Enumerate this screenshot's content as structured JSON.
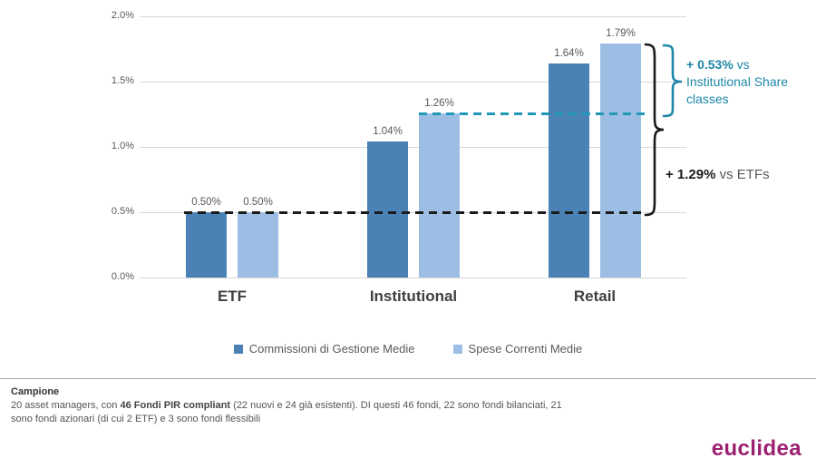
{
  "chart_data": {
    "type": "bar",
    "title": "",
    "categories": [
      "ETF",
      "Institutional",
      "Retail"
    ],
    "series": [
      {
        "name": "Commissioni di Gestione Medie",
        "color": "#4A82B6",
        "values": [
          0.5,
          1.04,
          1.64
        ],
        "value_labels": [
          "0.50%",
          "1.04%",
          "1.64%"
        ]
      },
      {
        "name": "Spese Correnti Medie",
        "color": "#9DBEE4",
        "values": [
          0.5,
          1.26,
          1.79
        ],
        "value_labels": [
          "0.50%",
          "1.26%",
          "1.79%"
        ]
      }
    ],
    "y_axis": {
      "tick_labels": [
        "0.0%",
        "0.5%",
        "1.0%",
        "1.5%",
        "2.0%"
      ],
      "tick_values": [
        0,
        0.5,
        1.0,
        1.5,
        2.0
      ],
      "ylim": [
        0,
        2.0
      ],
      "unit": "%"
    },
    "grid": true,
    "legend_position": "bottom",
    "reference_lines": [
      {
        "value": 0.5,
        "color": "#1A1A1A",
        "style": "dashed",
        "meaning": "ETF level"
      },
      {
        "value": 1.26,
        "color": "#2098B6",
        "style": "dashed",
        "meaning": "Institutional Spese Correnti level"
      }
    ],
    "annotations": [
      {
        "bold": "+ 0.53%",
        "rest": " vs Institutional Share classes",
        "color": "#1E87A8"
      },
      {
        "bold": "+ 1.29%",
        "rest": " vs ETFs",
        "color": "#1A1A1A"
      }
    ]
  },
  "footer": {
    "title": "Campione",
    "text_pre": "20 asset managers, con ",
    "text_bold": "46 Fondi PIR compliant",
    "text_post": " (22 nuovi e 24 già esistenti). DI questi 46 fondi, 22 sono fondi bilanciati, 21 sono fondi azionari (di cui 2 ETF) e 3 sono fondi flessibili"
  },
  "logo": {
    "text": "euclidea",
    "color": "#9A2070"
  }
}
